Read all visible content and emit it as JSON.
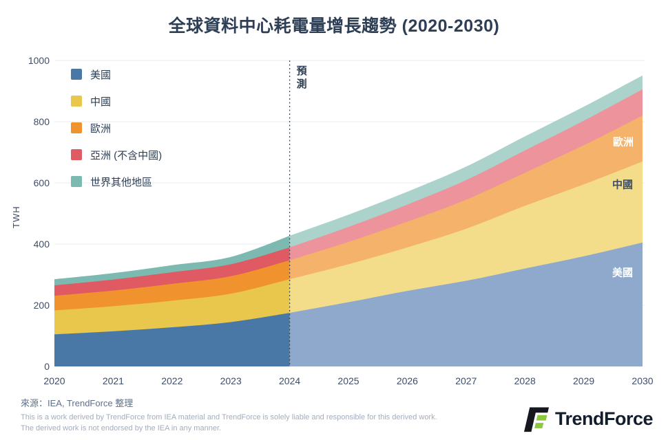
{
  "title": "全球資料中心耗電量增長趨勢 (2020-2030)",
  "forecast_label": "預測",
  "y_axis": {
    "title": "TWH",
    "ticks": [
      0,
      200,
      400,
      600,
      800,
      1000
    ]
  },
  "x_axis": {
    "ticks": [
      "2020",
      "2021",
      "2022",
      "2023",
      "2024",
      "2025",
      "2026",
      "2027",
      "2028",
      "2029",
      "2030"
    ]
  },
  "legend": [
    {
      "label": "美國",
      "color": "#4a78a6"
    },
    {
      "label": "中國",
      "color": "#e8c74c"
    },
    {
      "label": "歐洲",
      "color": "#f0922d"
    },
    {
      "label": "亞洲 (不含中國)",
      "color": "#e05a63"
    },
    {
      "label": "世界其他地區",
      "color": "#7cb9b0"
    }
  ],
  "chart_data": {
    "type": "area",
    "stacked": true,
    "title": "全球資料中心耗電量增長趨勢 (2020-2030)",
    "xlabel": "",
    "ylabel": "TWH",
    "ylim": [
      0,
      1000
    ],
    "grid": true,
    "legend_position": "top-left",
    "x": [
      2020,
      2021,
      2022,
      2023,
      2024,
      2025,
      2026,
      2027,
      2028,
      2029,
      2030
    ],
    "forecast_from": 2024,
    "forecast_style": "lighter colors right of dotted divider line",
    "series": [
      {
        "name": "美國",
        "key": "usa",
        "color_hist": "#4a78a6",
        "color_forecast": "#8fa9cc",
        "values": [
          105,
          115,
          128,
          145,
          175,
          210,
          247,
          280,
          320,
          360,
          405
        ]
      },
      {
        "name": "中國",
        "key": "china",
        "color_hist": "#e8c74c",
        "color_forecast": "#f3dd8b",
        "values": [
          78,
          82,
          87,
          93,
          110,
          124,
          142,
          170,
          205,
          235,
          265
        ]
      },
      {
        "name": "歐洲",
        "key": "europe",
        "color_hist": "#f0922d",
        "color_forecast": "#f5b26b",
        "values": [
          48,
          51,
          55,
          57,
          62,
          73,
          84,
          95,
          108,
          128,
          150
        ]
      },
      {
        "name": "亞洲 (不含中國)",
        "key": "asia",
        "color_hist": "#e05a63",
        "color_forecast": "#ed939b",
        "values": [
          34,
          36,
          38,
          39,
          42,
          49,
          56,
          64,
          73,
          80,
          86
        ]
      },
      {
        "name": "世界其他地區",
        "key": "row",
        "color_hist": "#7cb9b0",
        "color_forecast": "#abd2cb",
        "values": [
          20,
          21,
          23,
          24,
          38,
          40,
          42,
          44,
          46,
          46,
          45
        ]
      }
    ],
    "area_labels": [
      {
        "text": "歐洲",
        "color": "#ffffff"
      },
      {
        "text": "中國",
        "color": "#3e4d68"
      },
      {
        "text": "美國",
        "color": "#ffffff"
      }
    ],
    "divider_color": "#39475e",
    "gridline_color": "#e9ebf0"
  },
  "source": "來源：IEA, TrendForce 整理",
  "disclaimer_line1": "This is a work derived by TrendForce from IEA material and TrendForce is solely liable and responsible for this derived work.",
  "disclaimer_line2": "The derived work is not endorsed by the IEA in any manner.",
  "logo": {
    "text": "TrendForce",
    "green": "#8dc63f",
    "black": "#17171f"
  }
}
